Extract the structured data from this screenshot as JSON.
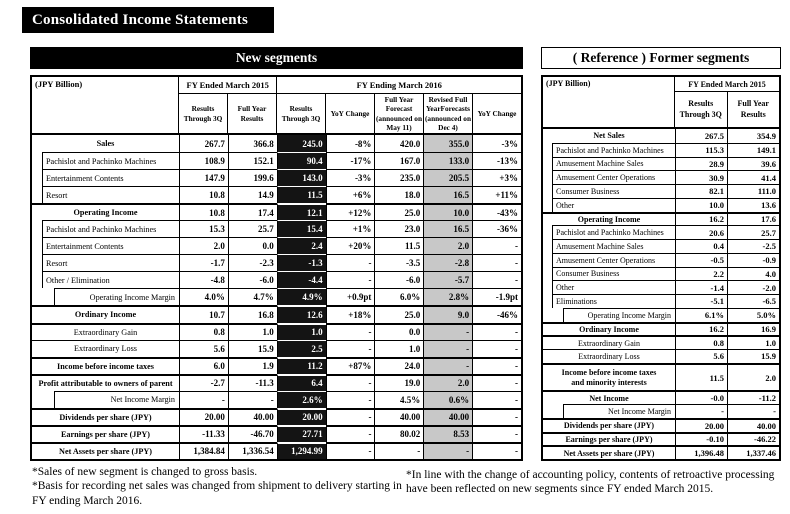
{
  "page": {
    "title": "Consolidated Income Statements"
  },
  "colors": {
    "header_bar_bg": "#000000",
    "dark_column_bg": "#141414",
    "dark_column_text": "#ffffff",
    "gray_column_bg": "#c8c8c8"
  },
  "new_segments": {
    "title": "New segments",
    "unit_label": "(JPY Billion)",
    "column_groups": [
      {
        "label": "FY Ended March 2015",
        "span": 2
      },
      {
        "label": "FY Ending March 2016",
        "span": 5
      }
    ],
    "columns": [
      {
        "label": "Results Through 3Q",
        "style": "normal"
      },
      {
        "label": "Full Year Results",
        "style": "normal"
      },
      {
        "label": "Results Through 3Q",
        "style": "dark"
      },
      {
        "label": "YoY Change",
        "style": "normal"
      },
      {
        "label": "Full Year Forecast (announced on May 11)",
        "style": "normal"
      },
      {
        "label": "Revised Full YearForecasts (announced on Dec 4)",
        "style": "gray"
      },
      {
        "label": "YoY Change",
        "style": "normal"
      }
    ],
    "rows": [
      {
        "label": "Sales",
        "level": 0,
        "bold": true,
        "thick": true,
        "values": [
          "267.7",
          "366.8",
          "245.0",
          "-8%",
          "420.0",
          "355.0",
          "-3%"
        ]
      },
      {
        "label": "Pachislot and Pachinko Machines",
        "level": 1,
        "bold": false,
        "thick": false,
        "values": [
          "108.9",
          "152.1",
          "90.4",
          "-17%",
          "167.0",
          "133.0",
          "-13%"
        ]
      },
      {
        "label": "Entertainment Contents",
        "level": 1,
        "bold": false,
        "thick": false,
        "values": [
          "147.9",
          "199.6",
          "143.0",
          "-3%",
          "235.0",
          "205.5",
          "+3%"
        ]
      },
      {
        "label": "Resort",
        "level": 1,
        "bold": false,
        "thick": false,
        "values": [
          "10.8",
          "14.9",
          "11.5",
          "+6%",
          "18.0",
          "16.5",
          "+11%"
        ]
      },
      {
        "label": "Operating Income",
        "level": 0,
        "bold": true,
        "thick": true,
        "values": [
          "10.8",
          "17.4",
          "12.1",
          "+12%",
          "25.0",
          "10.0",
          "-43%"
        ]
      },
      {
        "label": "Pachislot and Pachinko Machines",
        "level": 1,
        "bold": false,
        "thick": false,
        "values": [
          "15.3",
          "25.7",
          "15.4",
          "+1%",
          "23.0",
          "16.5",
          "-36%"
        ]
      },
      {
        "label": "Entertainment Contents",
        "level": 1,
        "bold": false,
        "thick": false,
        "values": [
          "2.0",
          "0.0",
          "2.4",
          "+20%",
          "11.5",
          "2.0",
          "-"
        ]
      },
      {
        "label": "Resort",
        "level": 1,
        "bold": false,
        "thick": false,
        "values": [
          "-1.7",
          "-2.3",
          "-1.3",
          "-",
          "-3.5",
          "-2.8",
          "-"
        ]
      },
      {
        "label": "Other / Elimination",
        "level": 1,
        "bold": false,
        "thick": false,
        "values": [
          "-4.8",
          "-6.0",
          "-4.4",
          "-",
          "-6.0",
          "-5.7",
          "-"
        ]
      },
      {
        "label": "Operating Income Margin",
        "level": 2,
        "bold": false,
        "thick": false,
        "values": [
          "4.0%",
          "4.7%",
          "4.9%",
          "+0.9pt",
          "6.0%",
          "2.8%",
          "-1.9pt"
        ]
      },
      {
        "label": "Ordinary Income",
        "level": 0,
        "bold": true,
        "thick": true,
        "values": [
          "10.7",
          "16.8",
          "12.6",
          "+18%",
          "25.0",
          "9.0",
          "-46%"
        ]
      },
      {
        "label": "Extraordinary Gain",
        "level": 0,
        "bold": false,
        "thick": true,
        "values": [
          "0.8",
          "1.0",
          "1.0",
          "-",
          "0.0",
          "-",
          "-"
        ]
      },
      {
        "label": "Extraordinary Loss",
        "level": 0,
        "bold": false,
        "thick": false,
        "values": [
          "5.6",
          "15.9",
          "2.5",
          "-",
          "1.0",
          "-",
          "-"
        ]
      },
      {
        "label": "Income before income taxes",
        "level": 0,
        "bold": true,
        "thick": true,
        "values": [
          "6.0",
          "1.9",
          "11.2",
          "+87%",
          "24.0",
          "-",
          "-"
        ]
      },
      {
        "label": "Profit attributable to owners of parent",
        "level": 0,
        "bold": true,
        "thick": true,
        "values": [
          "-2.7",
          "-11.3",
          "6.4",
          "-",
          "19.0",
          "2.0",
          "-"
        ]
      },
      {
        "label": "Net Income Margin",
        "level": 2,
        "bold": false,
        "thick": false,
        "values": [
          "-",
          "-",
          "2.6%",
          "-",
          "4.5%",
          "0.6%",
          "-"
        ]
      },
      {
        "label": "Dividends per share (JPY)",
        "level": 0,
        "bold": true,
        "thick": true,
        "values": [
          "20.00",
          "40.00",
          "20.00",
          "-",
          "40.00",
          "40.00",
          "-"
        ]
      },
      {
        "label": "Earnings per share (JPY)",
        "level": 0,
        "bold": true,
        "thick": true,
        "values": [
          "-11.33",
          "-46.70",
          "27.71",
          "-",
          "80.02",
          "8.53",
          "-"
        ]
      },
      {
        "label": "Net Assets per share (JPY)",
        "level": 0,
        "bold": true,
        "thick": true,
        "values": [
          "1,384.84",
          "1,336.54",
          "1,294.99",
          "-",
          "-",
          "-",
          "-"
        ]
      }
    ]
  },
  "former_segments": {
    "title": "( Reference ) Former segments",
    "unit_label": "(JPY Billion)",
    "column_groups": [
      {
        "label": "FY Ended March 2015",
        "span": 2
      }
    ],
    "columns": [
      {
        "label": "Results Through 3Q",
        "style": "normal"
      },
      {
        "label": "Full Year Results",
        "style": "normal"
      }
    ],
    "rows": [
      {
        "label": "Net Sales",
        "level": 0,
        "bold": true,
        "thick": true,
        "values": [
          "267.5",
          "354.9"
        ]
      },
      {
        "label": "Pachislot and Pachinko Machines",
        "level": 1,
        "bold": false,
        "thick": false,
        "values": [
          "115.3",
          "149.1"
        ]
      },
      {
        "label": "Amusement Machine Sales",
        "level": 1,
        "bold": false,
        "thick": false,
        "values": [
          "28.9",
          "39.6"
        ]
      },
      {
        "label": "Amusement Center Operations",
        "level": 1,
        "bold": false,
        "thick": false,
        "values": [
          "30.9",
          "41.4"
        ]
      },
      {
        "label": "Consumer Business",
        "level": 1,
        "bold": false,
        "thick": false,
        "values": [
          "82.1",
          "111.0"
        ]
      },
      {
        "label": "Other",
        "level": 1,
        "bold": false,
        "thick": false,
        "values": [
          "10.0",
          "13.6"
        ]
      },
      {
        "label": "Operating Income",
        "level": 0,
        "bold": true,
        "thick": true,
        "values": [
          "16.2",
          "17.6"
        ]
      },
      {
        "label": "Pachislot and Pachinko Machines",
        "level": 1,
        "bold": false,
        "thick": false,
        "values": [
          "20.6",
          "25.7"
        ]
      },
      {
        "label": "Amusement Machine Sales",
        "level": 1,
        "bold": false,
        "thick": false,
        "values": [
          "0.4",
          "-2.5"
        ]
      },
      {
        "label": "Amusement Center Operations",
        "level": 1,
        "bold": false,
        "thick": false,
        "values": [
          "-0.5",
          "-0.9"
        ]
      },
      {
        "label": "Consumer Business",
        "level": 1,
        "bold": false,
        "thick": false,
        "values": [
          "2.2",
          "4.0"
        ]
      },
      {
        "label": "Other",
        "level": 1,
        "bold": false,
        "thick": false,
        "values": [
          "-1.4",
          "-2.0"
        ]
      },
      {
        "label": "Eliminations",
        "level": 1,
        "bold": false,
        "thick": false,
        "values": [
          "-5.1",
          "-6.5"
        ]
      },
      {
        "label": "Operating Income Margin",
        "level": 2,
        "bold": false,
        "thick": false,
        "values": [
          "6.1%",
          "5.0%"
        ]
      },
      {
        "label": "Ordinary Income",
        "level": 0,
        "bold": true,
        "thick": true,
        "values": [
          "16.2",
          "16.9"
        ]
      },
      {
        "label": "Extraordinary Gain",
        "level": 0,
        "bold": false,
        "thick": true,
        "values": [
          "0.8",
          "1.0"
        ]
      },
      {
        "label": "Extraordinary Loss",
        "level": 0,
        "bold": false,
        "thick": false,
        "values": [
          "5.6",
          "15.9"
        ]
      },
      {
        "label": "Income before income taxes\nand minority interests",
        "level": 0,
        "bold": true,
        "thick": true,
        "tall": true,
        "values": [
          "11.5",
          "2.0"
        ]
      },
      {
        "label": "Net Income",
        "level": 0,
        "bold": true,
        "thick": true,
        "values": [
          "-0.0",
          "-11.2"
        ]
      },
      {
        "label": "Net Income Margin",
        "level": 2,
        "bold": false,
        "thick": false,
        "values": [
          "-",
          "-"
        ]
      },
      {
        "label": "Dividends per share (JPY)",
        "level": 0,
        "bold": true,
        "thick": true,
        "values": [
          "20.00",
          "40.00"
        ]
      },
      {
        "label": "Earnings per share (JPY)",
        "level": 0,
        "bold": true,
        "thick": true,
        "values": [
          "-0.10",
          "-46.22"
        ]
      },
      {
        "label": "Net Assets per share (JPY)",
        "level": 0,
        "bold": true,
        "thick": true,
        "values": [
          "1,396.48",
          "1,337.46"
        ]
      }
    ]
  },
  "footnotes": {
    "left": [
      "*Sales of new segment is changed to gross basis.",
      "*Basis for recording net sales was changed from shipment to delivery starting in FY ending March 2016."
    ],
    "right": [
      "*In line with the change of accounting policy, contents of retroactive processing have been reflected on new segments since FY ended March 2015."
    ]
  }
}
